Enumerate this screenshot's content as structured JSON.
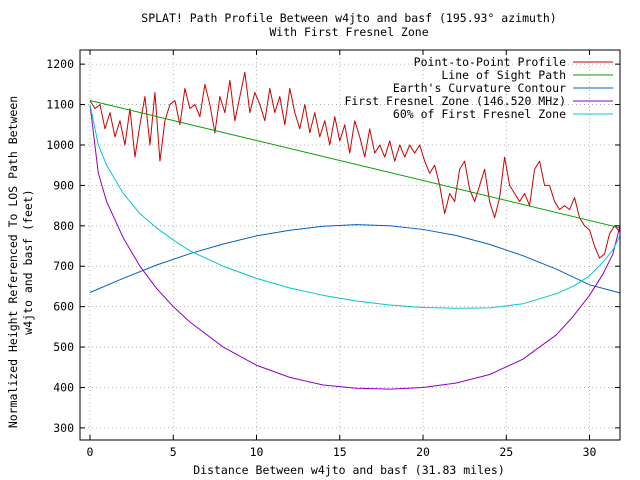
{
  "chart_data": {
    "type": "line",
    "title": "SPLAT! Path Profile Between w4jto and basf (195.93° azimuth)",
    "subtitle": "With First Fresnel Zone",
    "xlabel": "Distance Between w4jto and basf (31.83 miles)",
    "ylabel_line1": "Normalized Height Referenced To LOS Path Between",
    "ylabel_line2": "w4jto and basf (feet)",
    "xlim": [
      -0.6,
      31.83
    ],
    "ylim": [
      270,
      1235
    ],
    "x_ticks": [
      0,
      5,
      10,
      15,
      20,
      25,
      30
    ],
    "y_ticks": [
      300,
      400,
      500,
      600,
      700,
      800,
      900,
      1000,
      1100,
      1200
    ],
    "grid": true,
    "legend_position": "top-right",
    "series": [
      {
        "name": "Point-to-Point Profile",
        "color": "#cc0000",
        "x": [
          0,
          0.3,
          0.6,
          0.9,
          1.2,
          1.5,
          1.8,
          2.1,
          2.4,
          2.7,
          3.0,
          3.3,
          3.6,
          3.9,
          4.2,
          4.5,
          4.8,
          5.1,
          5.4,
          5.7,
          6.0,
          6.3,
          6.6,
          6.9,
          7.2,
          7.5,
          7.8,
          8.1,
          8.4,
          8.7,
          9.0,
          9.3,
          9.6,
          9.9,
          10.2,
          10.5,
          10.8,
          11.1,
          11.4,
          11.7,
          12.0,
          12.3,
          12.6,
          12.9,
          13.2,
          13.5,
          13.8,
          14.1,
          14.4,
          14.7,
          15.0,
          15.3,
          15.6,
          15.9,
          16.2,
          16.5,
          16.8,
          17.1,
          17.4,
          17.7,
          18.0,
          18.3,
          18.6,
          18.9,
          19.2,
          19.5,
          19.8,
          20.1,
          20.4,
          20.7,
          21.0,
          21.3,
          21.6,
          21.9,
          22.2,
          22.5,
          22.8,
          23.1,
          23.4,
          23.7,
          24.0,
          24.3,
          24.6,
          24.9,
          25.2,
          25.5,
          25.8,
          26.1,
          26.4,
          26.7,
          27.0,
          27.3,
          27.6,
          27.9,
          28.2,
          28.5,
          28.8,
          29.1,
          29.4,
          29.7,
          30.0,
          30.3,
          30.6,
          30.9,
          31.2,
          31.5,
          31.83
        ],
        "y": [
          1110,
          1090,
          1100,
          1040,
          1080,
          1020,
          1060,
          1000,
          1090,
          970,
          1050,
          1120,
          1000,
          1130,
          960,
          1060,
          1100,
          1110,
          1050,
          1140,
          1090,
          1100,
          1070,
          1150,
          1100,
          1030,
          1120,
          1080,
          1160,
          1060,
          1120,
          1180,
          1080,
          1130,
          1100,
          1060,
          1140,
          1080,
          1120,
          1050,
          1140,
          1080,
          1040,
          1100,
          1030,
          1080,
          1020,
          1060,
          1000,
          1070,
          1010,
          1050,
          980,
          1060,
          1020,
          970,
          1040,
          980,
          1000,
          970,
          1010,
          960,
          1000,
          970,
          1000,
          980,
          1000,
          960,
          930,
          950,
          900,
          830,
          880,
          860,
          940,
          960,
          890,
          860,
          900,
          940,
          860,
          820,
          870,
          970,
          900,
          880,
          860,
          880,
          850,
          940,
          960,
          900,
          900,
          860,
          840,
          850,
          840,
          870,
          820,
          800,
          790,
          750,
          720,
          730,
          780,
          800,
          785
        ]
      },
      {
        "name": "Line of Sight Path",
        "color": "#00a000",
        "x": [
          0,
          31.83
        ],
        "y": [
          1110,
          795
        ]
      },
      {
        "name": "Earth's Curvature Contour",
        "color": "#0060c0",
        "x": [
          0,
          2,
          4,
          6,
          8,
          10,
          12,
          14,
          16,
          18,
          20,
          22,
          24,
          26,
          28,
          30,
          31.83
        ],
        "y": [
          635,
          670,
          703,
          731,
          755,
          775,
          789,
          799,
          803,
          800,
          791,
          776,
          754,
          726,
          693,
          654,
          634
        ]
      },
      {
        "name": "First Fresnel Zone (146.520 MHz)",
        "color": "#9000c0",
        "x": [
          0,
          0.5,
          1,
          2,
          3,
          4,
          5,
          6,
          8,
          10,
          12,
          14,
          16,
          18,
          20,
          22,
          24,
          26,
          28,
          29,
          30,
          30.8,
          31.4,
          31.83
        ],
        "y": [
          1100,
          930,
          860,
          770,
          700,
          645,
          600,
          562,
          500,
          455,
          425,
          406,
          398,
          396,
          400,
          411,
          432,
          470,
          530,
          575,
          628,
          680,
          730,
          800
        ]
      },
      {
        "name": "60% of First Fresnel Zone",
        "color": "#00c8d0",
        "x": [
          0,
          0.5,
          1,
          2,
          3,
          4,
          5,
          6,
          8,
          10,
          12,
          14,
          16,
          18,
          20,
          22,
          24,
          26,
          28,
          29,
          30,
          30.8,
          31.4,
          31.83
        ],
        "y": [
          1100,
          1000,
          950,
          880,
          830,
          795,
          765,
          738,
          700,
          670,
          646,
          628,
          614,
          604,
          598,
          596,
          597,
          607,
          632,
          650,
          676,
          710,
          740,
          775
        ]
      }
    ]
  }
}
